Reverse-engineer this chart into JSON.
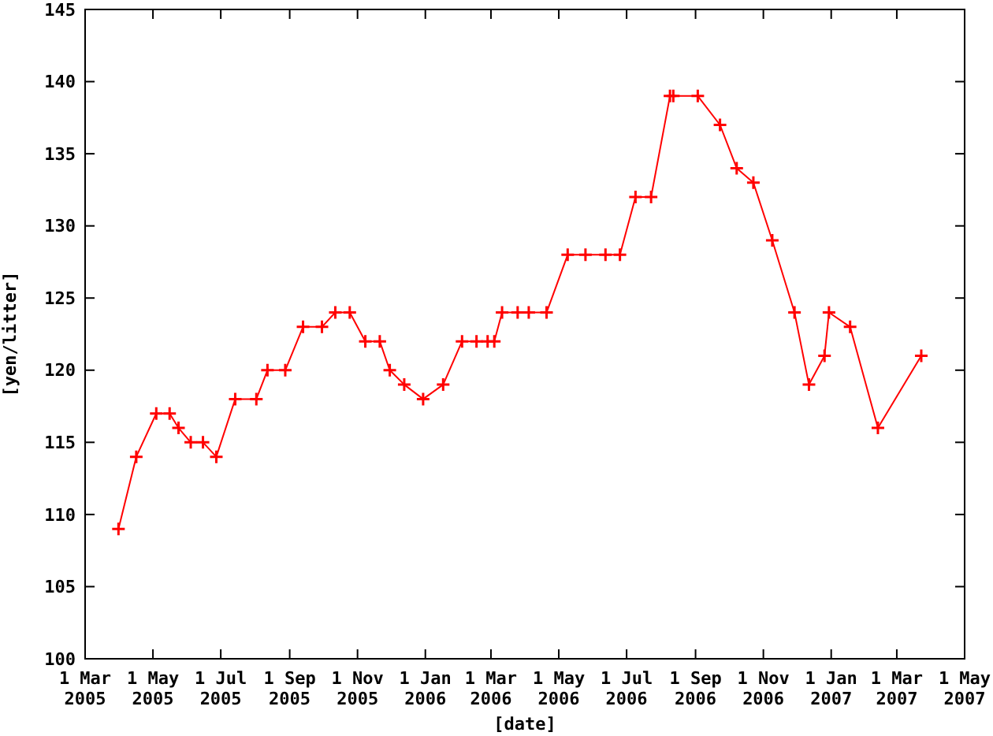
{
  "chart_data": {
    "type": "line",
    "xlabel": "[date]",
    "ylabel": "[yen/litter]",
    "x": [
      "2005-03-31",
      "2005-04-16",
      "2005-05-04",
      "2005-05-16",
      "2005-05-24",
      "2005-06-04",
      "2005-06-15",
      "2005-06-27",
      "2005-07-14",
      "2005-08-02",
      "2005-08-12",
      "2005-08-28",
      "2005-09-13",
      "2005-09-30",
      "2005-10-12",
      "2005-10-25",
      "2005-11-08",
      "2005-11-21",
      "2005-11-30",
      "2005-12-13",
      "2005-12-30",
      "2006-01-17",
      "2006-02-03",
      "2006-02-16",
      "2006-02-26",
      "2006-03-04",
      "2006-03-11",
      "2006-03-25",
      "2006-04-04",
      "2006-04-20",
      "2006-05-09",
      "2006-05-25",
      "2006-06-12",
      "2006-06-25",
      "2006-07-09",
      "2006-07-23",
      "2006-08-09",
      "2006-08-12",
      "2006-09-03",
      "2006-09-23",
      "2006-10-08",
      "2006-10-23",
      "2006-11-09",
      "2006-11-29",
      "2006-12-12",
      "2006-12-26",
      "2006-12-30",
      "2007-01-18",
      "2007-02-12",
      "2007-03-23"
    ],
    "series": [
      {
        "color": "#ff0000",
        "values": [
          109,
          114,
          117,
          117,
          116,
          115,
          115,
          114,
          118,
          118,
          120,
          120,
          123,
          123,
          124,
          124,
          122,
          122,
          120,
          119,
          118,
          119,
          122,
          122,
          122,
          122,
          124,
          124,
          124,
          124,
          128,
          128,
          128,
          128,
          132,
          132,
          139,
          139,
          139,
          137,
          134,
          133,
          129,
          124,
          119,
          121,
          124,
          123,
          116,
          121
        ]
      }
    ],
    "xlim": [
      "2005-03-01",
      "2007-05-01"
    ],
    "xticks": [
      {
        "value": "2005-03-01",
        "label": "1 Mar 2005"
      },
      {
        "value": "2005-05-01",
        "label": "1 May 2005"
      },
      {
        "value": "2005-07-01",
        "label": "1 Jul 2005"
      },
      {
        "value": "2005-09-01",
        "label": "1 Sep 2005"
      },
      {
        "value": "2005-11-01",
        "label": "1 Nov 2005"
      },
      {
        "value": "2006-01-01",
        "label": "1 Jan 2006"
      },
      {
        "value": "2006-03-01",
        "label": "1 Mar 2006"
      },
      {
        "value": "2006-05-01",
        "label": "1 May 2006"
      },
      {
        "value": "2006-07-01",
        "label": "1 Jul 2006"
      },
      {
        "value": "2006-09-01",
        "label": "1 Sep 2006"
      },
      {
        "value": "2006-11-01",
        "label": "1 Nov 2006"
      },
      {
        "value": "2007-01-01",
        "label": "1 Jan 2007"
      },
      {
        "value": "2007-03-01",
        "label": "1 Mar 2007"
      },
      {
        "value": "2007-05-01",
        "label": "1 May 2007"
      }
    ],
    "ylim": [
      100,
      145
    ],
    "yticks": [
      100,
      105,
      110,
      115,
      120,
      125,
      130,
      135,
      140,
      145
    ],
    "marker": "cross",
    "line_style": "solid"
  }
}
